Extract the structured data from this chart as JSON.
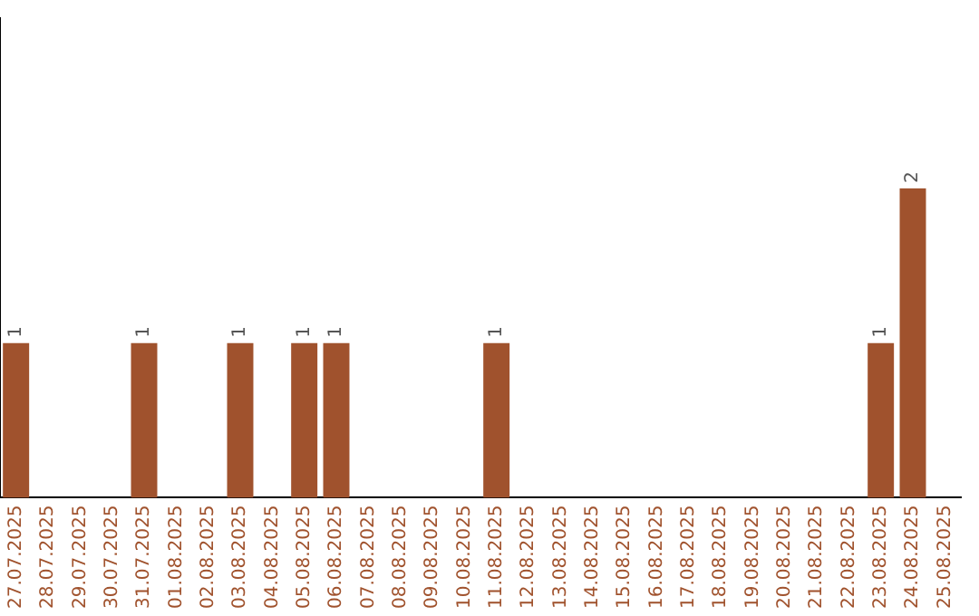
{
  "chart_data": {
    "type": "bar",
    "categories": [
      "27.07.2025",
      "28.07.2025",
      "29.07.2025",
      "30.07.2025",
      "31.07.2025",
      "01.08.2025",
      "02.08.2025",
      "03.08.2025",
      "04.08.2025",
      "05.08.2025",
      "06.08.2025",
      "07.08.2025",
      "08.08.2025",
      "09.08.2025",
      "10.08.2025",
      "11.08.2025",
      "12.08.2025",
      "13.08.2025",
      "14.08.2025",
      "15.08.2025",
      "16.08.2025",
      "17.08.2025",
      "18.08.2025",
      "19.08.2025",
      "20.08.2025",
      "21.08.2025",
      "22.08.2025",
      "23.08.2025",
      "24.08.2025",
      "25.08.2025"
    ],
    "values": [
      1,
      0,
      0,
      0,
      1,
      0,
      0,
      1,
      0,
      1,
      1,
      0,
      0,
      0,
      0,
      1,
      0,
      0,
      0,
      0,
      0,
      0,
      0,
      0,
      0,
      0,
      0,
      1,
      2,
      0
    ],
    "value_labels": [
      "1",
      null,
      null,
      null,
      "1",
      null,
      null,
      "1",
      null,
      "1",
      "1",
      null,
      null,
      null,
      null,
      "1",
      null,
      null,
      null,
      null,
      null,
      null,
      null,
      null,
      null,
      null,
      null,
      "1",
      "2",
      null
    ],
    "color": "#a0522d",
    "grid": false,
    "legend": false
  }
}
